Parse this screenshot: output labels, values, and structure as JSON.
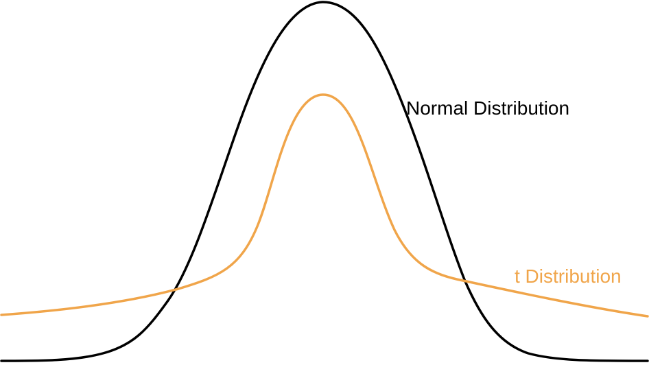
{
  "diagram": {
    "background": "#ffffff",
    "curves": [
      {
        "id": "normal",
        "label": "Normal Distribution",
        "color": "#000000",
        "shape": "bell curve, tall and narrow-tailed"
      },
      {
        "id": "t",
        "label": "t Distribution",
        "color": "#f0a54a",
        "shape": "bell curve, lower peak with heavier tails"
      }
    ]
  }
}
